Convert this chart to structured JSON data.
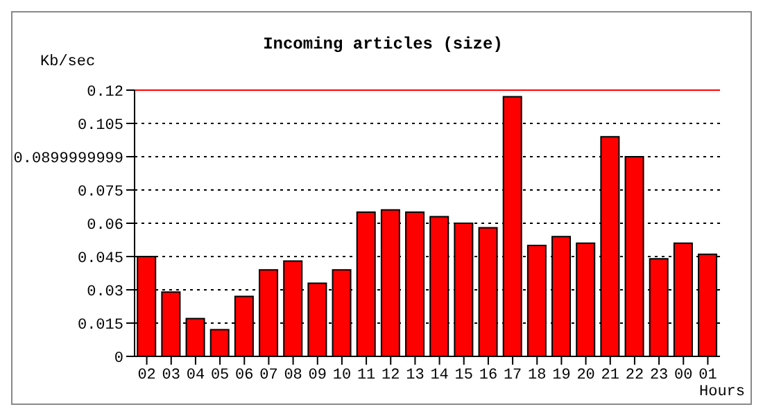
{
  "chart_data": {
    "type": "bar",
    "title": "Incoming articles (size)",
    "xlabel": "Hours",
    "ylabel": "Kb/sec",
    "categories": [
      "02",
      "03",
      "04",
      "05",
      "06",
      "07",
      "08",
      "09",
      "10",
      "11",
      "12",
      "13",
      "14",
      "15",
      "16",
      "17",
      "18",
      "19",
      "20",
      "21",
      "22",
      "23",
      "00",
      "01"
    ],
    "values": [
      0.045,
      0.029,
      0.017,
      0.012,
      0.027,
      0.039,
      0.043,
      0.033,
      0.039,
      0.065,
      0.066,
      0.065,
      0.063,
      0.06,
      0.058,
      0.117,
      0.05,
      0.054,
      0.051,
      0.099,
      0.09,
      0.044,
      0.051,
      0.046
    ],
    "color": "#ff0000",
    "ylim": [
      0,
      0.12
    ],
    "yticks": [
      0,
      0.015,
      0.03,
      0.045,
      0.06,
      0.075,
      {
        "value": 0.0899999999,
        "label": "0.0899999999"
      },
      0.105,
      0.12
    ],
    "grid": "y",
    "ref_lines": [
      {
        "axis": "y",
        "value": 0.12,
        "color": "#ff0000"
      }
    ]
  }
}
